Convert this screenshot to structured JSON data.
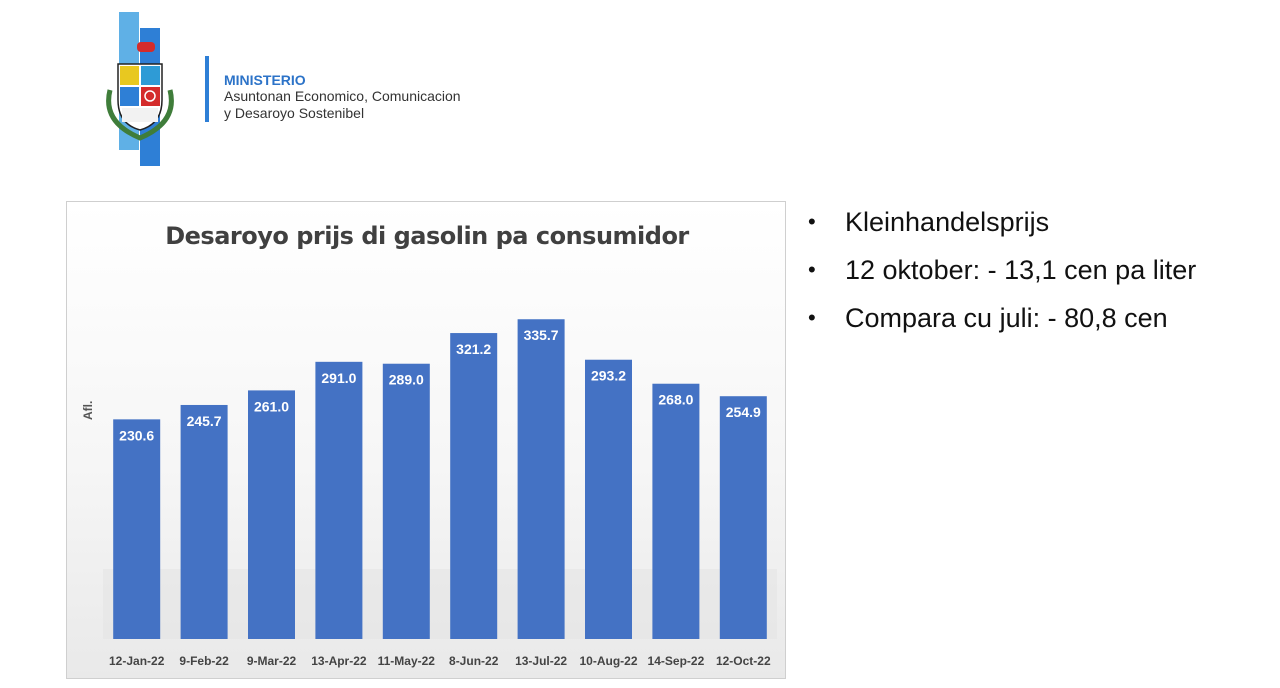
{
  "header": {
    "ministry_title": "MINISTERIO",
    "ministry_line1": "Asuntonan Economico, Comunicacion",
    "ministry_line2": "y Desaroyo Sostenibel",
    "logo_icon": "aruba-coat-of-arms-icon"
  },
  "bullets": [
    "Kleinhandelsprijs",
    "12 oktober: - 13,1 cen pa liter",
    "Compara cu juli: - 80,8 cen"
  ],
  "colors": {
    "bar": "#4472c4",
    "accent": "#2c73c8"
  },
  "chart_data": {
    "type": "bar",
    "title": "Desaroyo prijs di gasolin pa consumidor",
    "ylabel": "Afl.",
    "xlabel": "",
    "categories": [
      "12-Jan-22",
      "9-Feb-22",
      "9-Mar-22",
      "13-Apr-22",
      "11-May-22",
      "8-Jun-22",
      "13-Jul-22",
      "10-Aug-22",
      "14-Sep-22",
      "12-Oct-22"
    ],
    "values": [
      230.6,
      245.7,
      261.0,
      291.0,
      289.0,
      321.2,
      335.7,
      293.2,
      268.0,
      254.9
    ],
    "value_labels": [
      "230.6",
      "245.7",
      "261.0",
      "291.0",
      "289.0",
      "321.2",
      "335.7",
      "293.2",
      "268.0",
      "254.9"
    ],
    "ylim": [
      0,
      360
    ],
    "grid": false,
    "legend": "none"
  }
}
